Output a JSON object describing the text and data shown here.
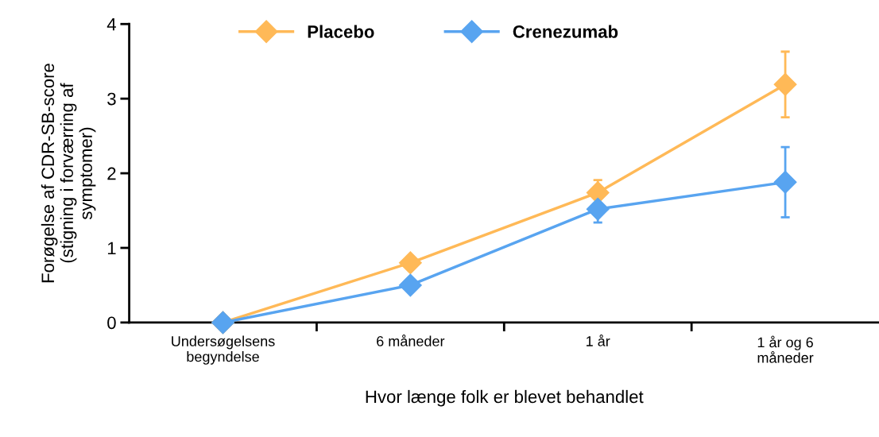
{
  "chart_data": {
    "type": "line",
    "xlabel": "Hvor længe folk er blevet behandlet",
    "ylabel": "Forøgelse af CDR-SB-score\n(stigning i forværring af\nsymptomer)",
    "categories": [
      "Undersøgelsens\nbegyndelse",
      "6 måneder",
      "1 år",
      "1 år og 6\nmåneder"
    ],
    "series": [
      {
        "name": "Placebo",
        "color": "#ffb957",
        "values": [
          0,
          0.8,
          1.74,
          3.19
        ],
        "errors": [
          null,
          null,
          0.17,
          0.44
        ]
      },
      {
        "name": "Crenezumab",
        "color": "#58a4f0",
        "values": [
          0,
          0.5,
          1.52,
          1.88
        ],
        "errors": [
          null,
          null,
          0.18,
          0.47
        ]
      }
    ],
    "ylim": [
      0,
      4
    ],
    "yticks": [
      0,
      1,
      2,
      3,
      4
    ],
    "grid": false,
    "legend": "top",
    "marker": "diamond",
    "line_style": "solid"
  }
}
